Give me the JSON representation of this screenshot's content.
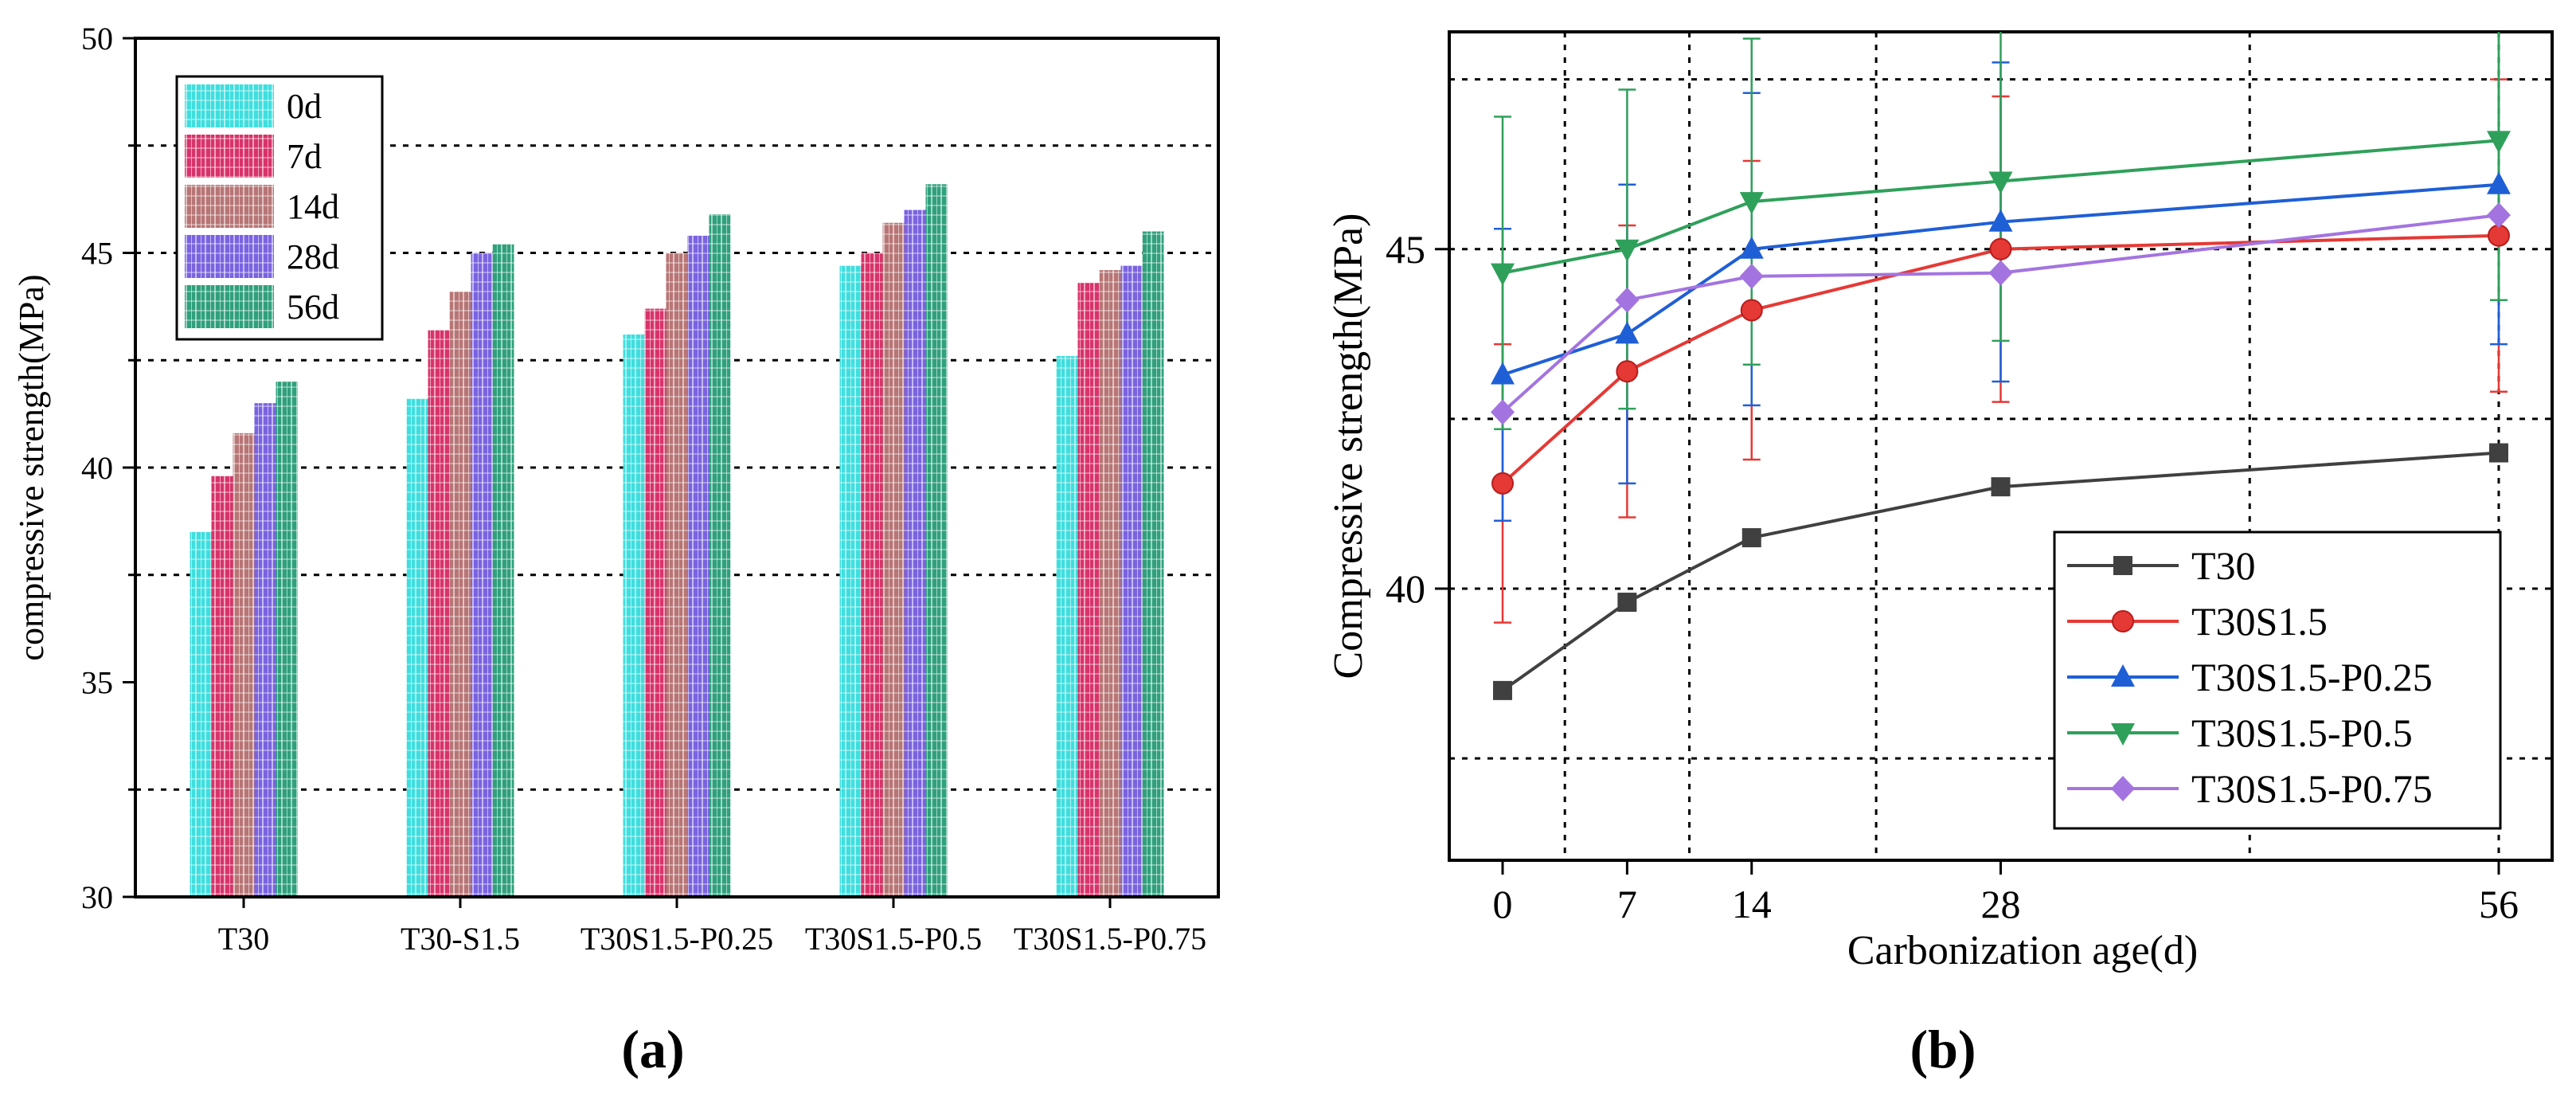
{
  "panel_labels": [
    "(a)",
    "(b)"
  ],
  "chart_data": [
    {
      "type": "bar",
      "title": "",
      "xlabel": "",
      "ylabel": "compressive strength(MPa)",
      "ylim": [
        30,
        50
      ],
      "yticks": [
        30,
        35,
        40,
        45,
        50
      ],
      "grid_y_dotted": [
        32.5,
        37.5,
        40,
        42.5,
        45,
        47.5
      ],
      "legend_position": "top-left",
      "categories": [
        "T30",
        "T30-S1.5",
        "T30S1.5-P0.25",
        "T30S1.5-P0.5",
        "T30S1.5-P0.75"
      ],
      "series": [
        {
          "name": "0d",
          "color": "#3fdede",
          "values": [
            38.5,
            41.6,
            43.1,
            44.7,
            42.6
          ]
        },
        {
          "name": "7d",
          "color": "#d8336a",
          "values": [
            39.8,
            43.2,
            43.7,
            45.0,
            44.3
          ]
        },
        {
          "name": "14d",
          "color": "#b77575",
          "values": [
            40.8,
            44.1,
            45.0,
            45.7,
            44.6
          ]
        },
        {
          "name": "28d",
          "color": "#7a63e0",
          "values": [
            41.5,
            45.0,
            45.4,
            46.0,
            44.7
          ]
        },
        {
          "name": "56d",
          "color": "#2fa07c",
          "values": [
            42.0,
            45.2,
            45.9,
            46.6,
            45.5
          ]
        }
      ]
    },
    {
      "type": "line",
      "title": "",
      "xlabel": "Carbonization age(d)",
      "ylabel": "Compressive strength(MPa)",
      "xlim": [
        -3,
        59
      ],
      "ylim": [
        36,
        48.2
      ],
      "x": [
        0,
        7,
        14,
        28,
        56
      ],
      "xticks": [
        0,
        7,
        14,
        28,
        56
      ],
      "yticks": [
        40,
        45
      ],
      "grid_x_dotted": [
        3.5,
        10.5,
        21,
        42,
        56
      ],
      "grid_y_dotted": [
        37.5,
        40,
        42.5,
        45,
        47.5
      ],
      "legend_position": "bottom-right",
      "series": [
        {
          "name": "T30",
          "marker": "square",
          "color": "#404040",
          "values": [
            38.5,
            39.8,
            40.75,
            41.5,
            42.0
          ],
          "errors": [
            0,
            0,
            0,
            0,
            0
          ]
        },
        {
          "name": "T30S1.5",
          "marker": "circle",
          "color": "#e53935",
          "values": [
            41.55,
            43.2,
            44.1,
            45.0,
            45.2
          ],
          "errors": [
            2.05,
            2.15,
            2.2,
            2.25,
            2.3
          ]
        },
        {
          "name": "T30S1.5-P0.25",
          "marker": "triangle-up",
          "color": "#1f5fd6",
          "values": [
            43.15,
            43.75,
            45.0,
            45.4,
            45.95
          ],
          "errors": [
            2.15,
            2.2,
            2.3,
            2.35,
            2.35
          ]
        },
        {
          "name": "T30S1.5-P0.5",
          "marker": "triangle-down",
          "color": "#2fa05a",
          "values": [
            44.65,
            45.0,
            45.7,
            46.0,
            46.6
          ],
          "errors": [
            2.3,
            2.35,
            2.4,
            2.35,
            2.35
          ]
        },
        {
          "name": "T30S1.5-P0.75",
          "marker": "diamond",
          "color": "#a374e0",
          "values": [
            42.6,
            44.25,
            44.6,
            44.65,
            45.5
          ],
          "errors": [
            0,
            0,
            0,
            0,
            0
          ]
        }
      ]
    }
  ]
}
